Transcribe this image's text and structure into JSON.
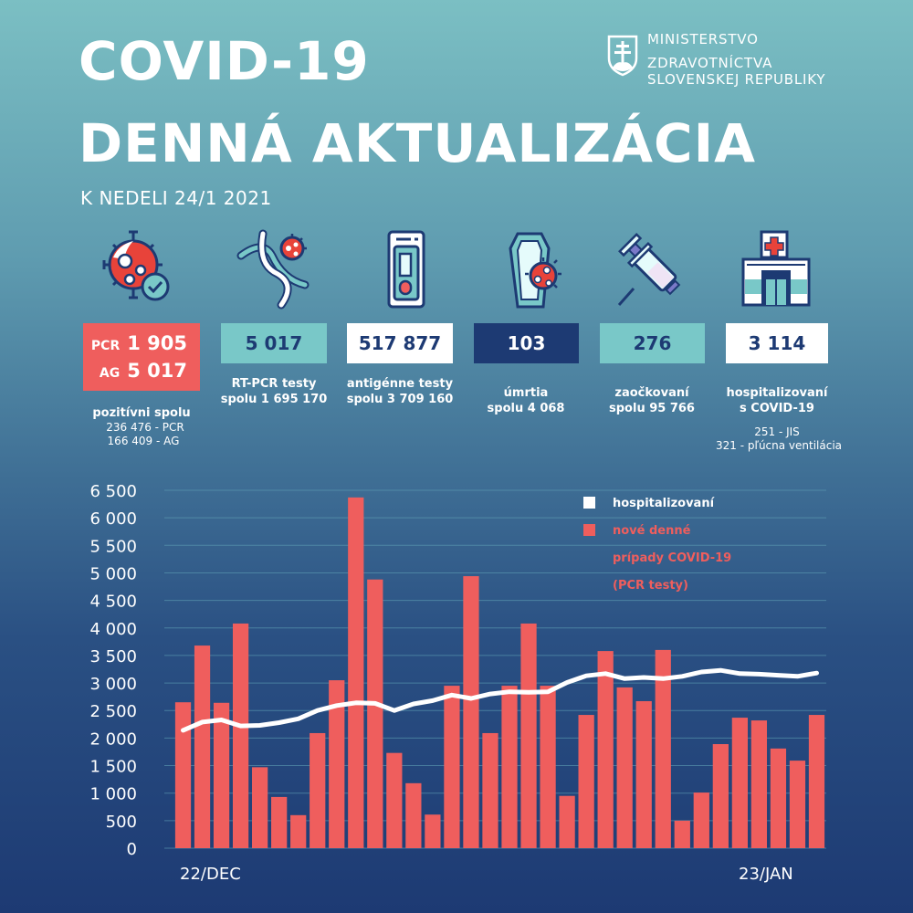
{
  "header": {
    "title_line1": "COVID-19",
    "title_line2": "DENNÁ AKTUALIZÁCIA",
    "subtitle": "K NEDELI 24/1 2021",
    "ministry": {
      "line1": "MINISTERSTVO",
      "line2": "ZDRAVOTNÍCTVA",
      "line3": "SLOVENSKEJ REPUBLIKY",
      "icon": "slovak-coat-of-arms-icon"
    }
  },
  "colors": {
    "accent_red": "#ef5e5d",
    "accent_teal": "#79c8c8",
    "dark_navy": "#1d3a73",
    "white": "#ffffff"
  },
  "stats": {
    "positive": {
      "icon": "virus-check-icon",
      "pcr_label": "PCR",
      "pcr_value": "1 905",
      "ag_label": "AG",
      "ag_value": "5 017",
      "label": "pozitívni spolu",
      "sub1": "236 476 - PCR",
      "sub2": "166 409 - AG"
    },
    "rtpcr": {
      "icon": "dna-virus-icon",
      "value": "5 017",
      "label1": "RT-PCR testy",
      "label2": "spolu 1 695 170"
    },
    "antigen": {
      "icon": "antigen-test-kit-icon",
      "value": "517 877",
      "label1": "antigénne testy",
      "label2": "spolu 3 709 160"
    },
    "deaths": {
      "icon": "coffin-virus-icon",
      "value": "103",
      "label1": "úmrtia",
      "label2": "spolu 4 068"
    },
    "vaccinated": {
      "icon": "syringe-icon",
      "value": "276",
      "label1": "zaočkovaní",
      "label2": "spolu 95 766"
    },
    "hospitalized": {
      "icon": "hospital-icon",
      "value": "3 114",
      "label1": "hospitalizovaní",
      "label2": "s COVID-19",
      "sub1": "251 - JIS",
      "sub2": "321 - pľúcna ventilácia"
    }
  },
  "chart_data": {
    "type": "bar",
    "title": "",
    "xlabel": "",
    "ylabel": "",
    "ylim": [
      0,
      6500
    ],
    "yticks": [
      0,
      500,
      1000,
      1500,
      2000,
      2500,
      3000,
      3500,
      4000,
      4500,
      5000,
      5500,
      6000,
      6500
    ],
    "ytick_labels": [
      "0",
      "500",
      "1 000",
      "1 500",
      "2 000",
      "2 500",
      "3 000",
      "3 500",
      "4 000",
      "4 500",
      "5 000",
      "5 500",
      "6 000",
      "6 500"
    ],
    "x_labels": {
      "first": "22/DEC",
      "last": "23/JAN"
    },
    "grid": true,
    "legend_position": "top-right",
    "legend": [
      {
        "name": "hospitalizovaní",
        "color": "#ffffff"
      },
      {
        "name": "nové denné prípady COVID-19 (PCR testy)",
        "lines": [
          "nové denné",
          "prípady COVID-19",
          "(PCR testy)"
        ],
        "color": "#ef5e5d"
      }
    ],
    "series": [
      {
        "name": "nové denné prípady COVID-19 (PCR testy)",
        "type": "bar",
        "color": "#ef5e5d",
        "values": [
          2650,
          3680,
          2640,
          4080,
          1470,
          930,
          600,
          2090,
          3050,
          6370,
          4880,
          1730,
          1180,
          610,
          2950,
          4940,
          2090,
          2950,
          4080,
          2950,
          950,
          2420,
          3580,
          2920,
          2670,
          3600,
          500,
          1010,
          1890,
          2370,
          2320,
          1810,
          1590,
          2420
        ]
      },
      {
        "name": "hospitalizovaní",
        "type": "line",
        "color": "#ffffff",
        "values": [
          2140,
          2290,
          2330,
          2220,
          2230,
          2280,
          2350,
          2500,
          2590,
          2640,
          2630,
          2500,
          2620,
          2680,
          2780,
          2720,
          2800,
          2840,
          2830,
          2840,
          3010,
          3130,
          3170,
          3080,
          3100,
          3080,
          3120,
          3200,
          3230,
          3170,
          3160,
          3140,
          3120,
          3180
        ]
      }
    ]
  }
}
